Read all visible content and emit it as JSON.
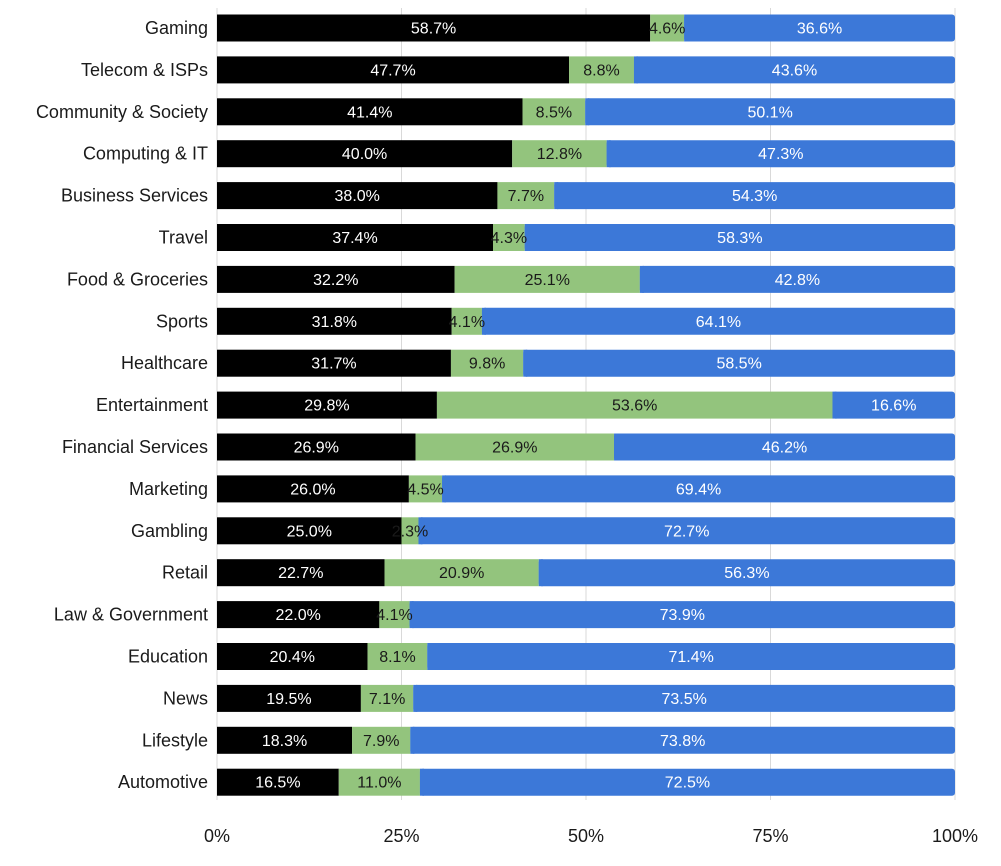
{
  "chart_data": {
    "type": "bar",
    "orientation": "horizontal",
    "stacked": true,
    "title": "",
    "xlabel": "",
    "ylabel": "",
    "xlim": [
      0,
      100
    ],
    "x_ticks": [
      "0%",
      "25%",
      "50%",
      "75%",
      "100%"
    ],
    "x_tick_values": [
      0,
      25,
      50,
      75,
      100
    ],
    "grid": true,
    "legend": "none",
    "colors": [
      "#000000",
      "#93c47d",
      "#3c78d8"
    ],
    "label_colors": [
      "#ffffff",
      "#1a1a1a",
      "#ffffff"
    ],
    "categories": [
      "Gaming",
      "Telecom & ISPs",
      "Community & Society",
      "Computing & IT",
      "Business Services",
      "Travel",
      "Food & Groceries",
      "Sports",
      "Healthcare",
      "Entertainment",
      "Financial Services",
      "Marketing",
      "Gambling",
      "Retail",
      "Law & Government",
      "Education",
      "News",
      "Lifestyle",
      "Automotive"
    ],
    "series": [
      {
        "values": [
          58.7,
          47.7,
          41.4,
          40.0,
          38.0,
          37.4,
          32.2,
          31.8,
          31.7,
          29.8,
          26.9,
          26.0,
          25.0,
          22.7,
          22.0,
          20.4,
          19.5,
          18.3,
          16.5
        ],
        "labels": [
          "58.7%",
          "47.7%",
          "41.4%",
          "40.0%",
          "38.0%",
          "37.4%",
          "32.2%",
          "31.8%",
          "31.7%",
          "29.8%",
          "26.9%",
          "26.0%",
          "25.0%",
          "22.7%",
          "22.0%",
          "20.4%",
          "19.5%",
          "18.3%",
          "16.5%"
        ]
      },
      {
        "values": [
          4.6,
          8.8,
          8.5,
          12.8,
          7.7,
          4.3,
          25.1,
          4.1,
          9.8,
          53.6,
          26.9,
          4.5,
          2.3,
          20.9,
          4.1,
          8.1,
          7.1,
          7.9,
          11.0
        ],
        "labels": [
          "4.6%",
          "8.8%",
          "8.5%",
          "12.8%",
          "7.7%",
          "4.3%",
          "25.1%",
          "4.1%",
          "9.8%",
          "53.6%",
          "26.9%",
          "4.5%",
          "2.3%",
          "20.9%",
          "4.1%",
          "8.1%",
          "7.1%",
          "7.9%",
          "11.0%"
        ]
      },
      {
        "values": [
          36.6,
          43.6,
          50.1,
          47.3,
          54.3,
          58.3,
          42.8,
          64.1,
          58.5,
          16.6,
          46.2,
          69.4,
          72.7,
          56.3,
          73.9,
          71.4,
          73.5,
          73.8,
          72.5
        ],
        "labels": [
          "36.6%",
          "43.6%",
          "50.1%",
          "47.3%",
          "54.3%",
          "58.3%",
          "42.8%",
          "64.1%",
          "58.5%",
          "16.6%",
          "46.2%",
          "69.4%",
          "72.7%",
          "56.3%",
          "73.9%",
          "71.4%",
          "73.5%",
          "73.8%",
          "72.5%"
        ]
      }
    ]
  }
}
